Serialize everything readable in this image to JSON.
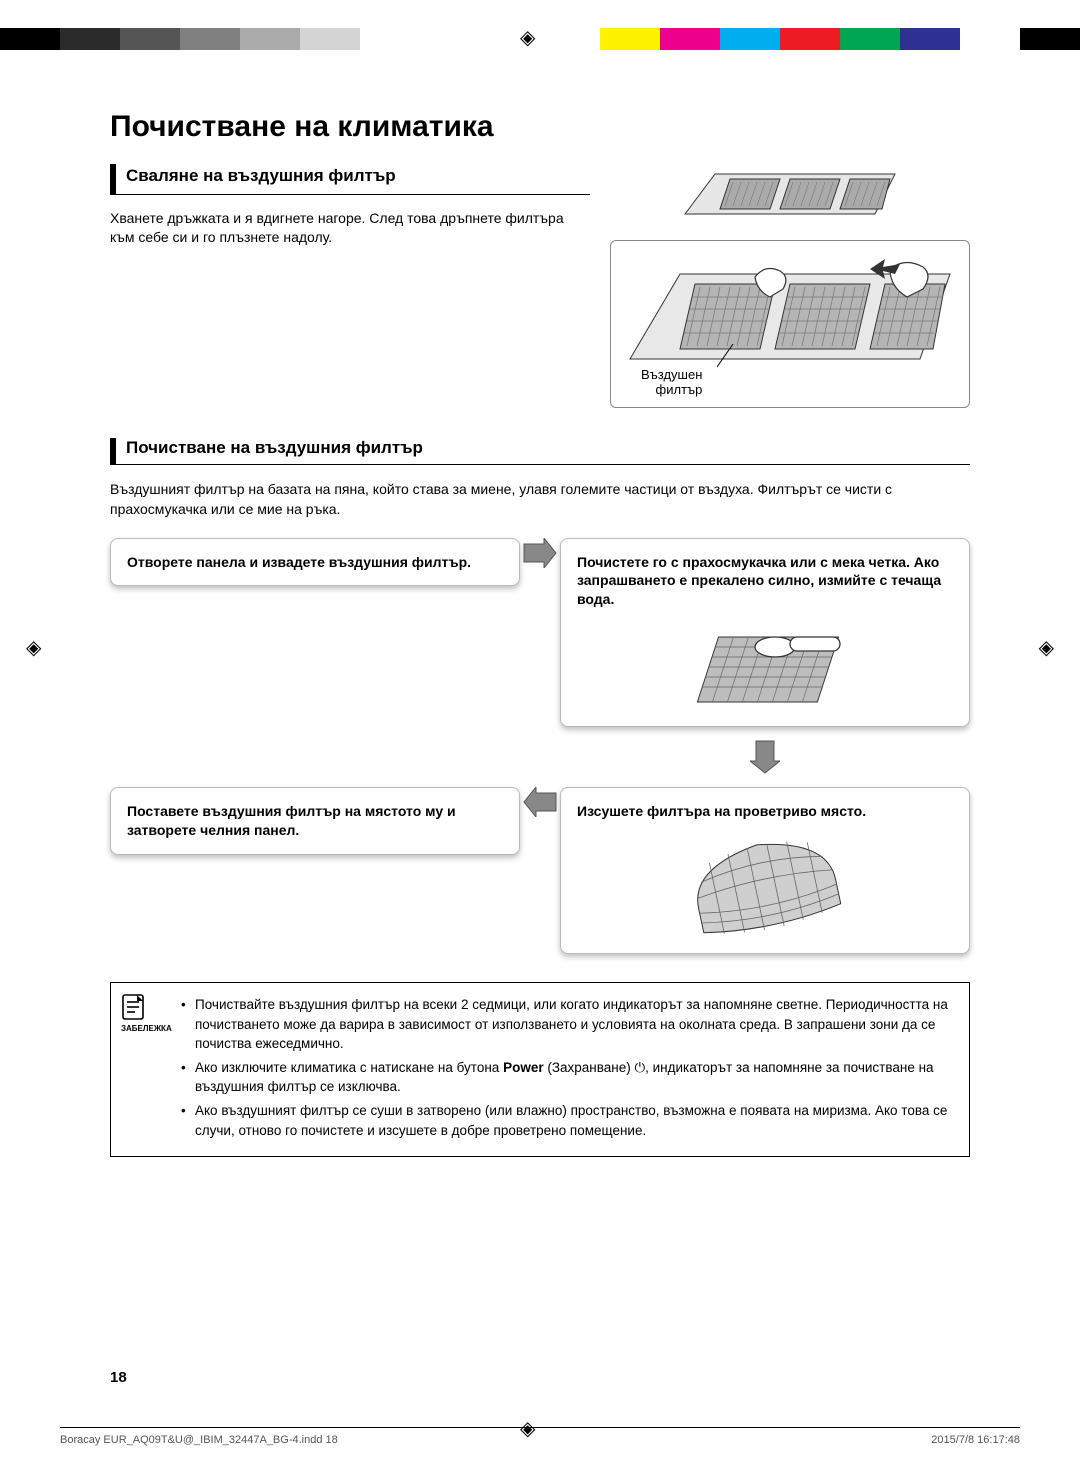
{
  "colorbar": [
    "#000",
    "#2b2b2b",
    "#555",
    "#808080",
    "#aaa",
    "#d4d4d4",
    "#fff",
    "#fff",
    "#fff",
    "#fff",
    "#fff200",
    "#ec008c",
    "#00aeef",
    "#ed1c24",
    "#00a651",
    "#2e3192",
    "#fff",
    "#000"
  ],
  "title": "Почистване на климатика",
  "section1": {
    "heading": "Сваляне на въздушния филтър",
    "text": "Хванете дръжката и я вдигнете нагоре. След това дръпнете филтъра към себе си и го плъзнете надолу.",
    "imgLabel": "Въздушен\nфилтър"
  },
  "section2": {
    "heading": "Почистване на въздушния филтър",
    "intro": "Въздушният филтър на базата на пяна, който става за миене, улавя големите частици от въздуха. Филтърът се чисти с прахосмукачка или се мие на ръка."
  },
  "steps": {
    "s1": "Отворете панела и извадете въздушния филтър.",
    "s2": "Почистете го с прахосмукачка или с мека четка. Ако запрашването е прекалено силно, измийте с течаща вода.",
    "s3": "Изсушете филтъра на проветриво място.",
    "s4": "Поставете въздушния филтър на мястото му и затворете челния панел."
  },
  "note": {
    "label": "ЗАБЕЛЕЖКА",
    "items": [
      "Почиствайте въздушния филтър на всеки 2 седмици, или когато индикаторът за напомняне светне. Периодичността на почистването може да варира в зависимост от използването и условията на околната среда. В запрашени зони да се почиства ежеседмично.",
      "Ако изключите климатика с натискане на бутона |POWER| (Захранване) ⏻, индикаторът за напомняне за почистване на въздушния филтър се изключва.",
      "Ако въздушният филтър се суши в затворено (или влажно) пространство, възможна е появата на миризма. Ако това се случи, отново го почистете и изсушете в добре проветрено помещение."
    ],
    "powerWord": "Power"
  },
  "pageNumber": "18",
  "footer": {
    "left": "Boracay EUR_AQ09T&U@_IBIM_32447A_BG-4.indd   18",
    "right": "2015/7/8   16:17:48"
  }
}
